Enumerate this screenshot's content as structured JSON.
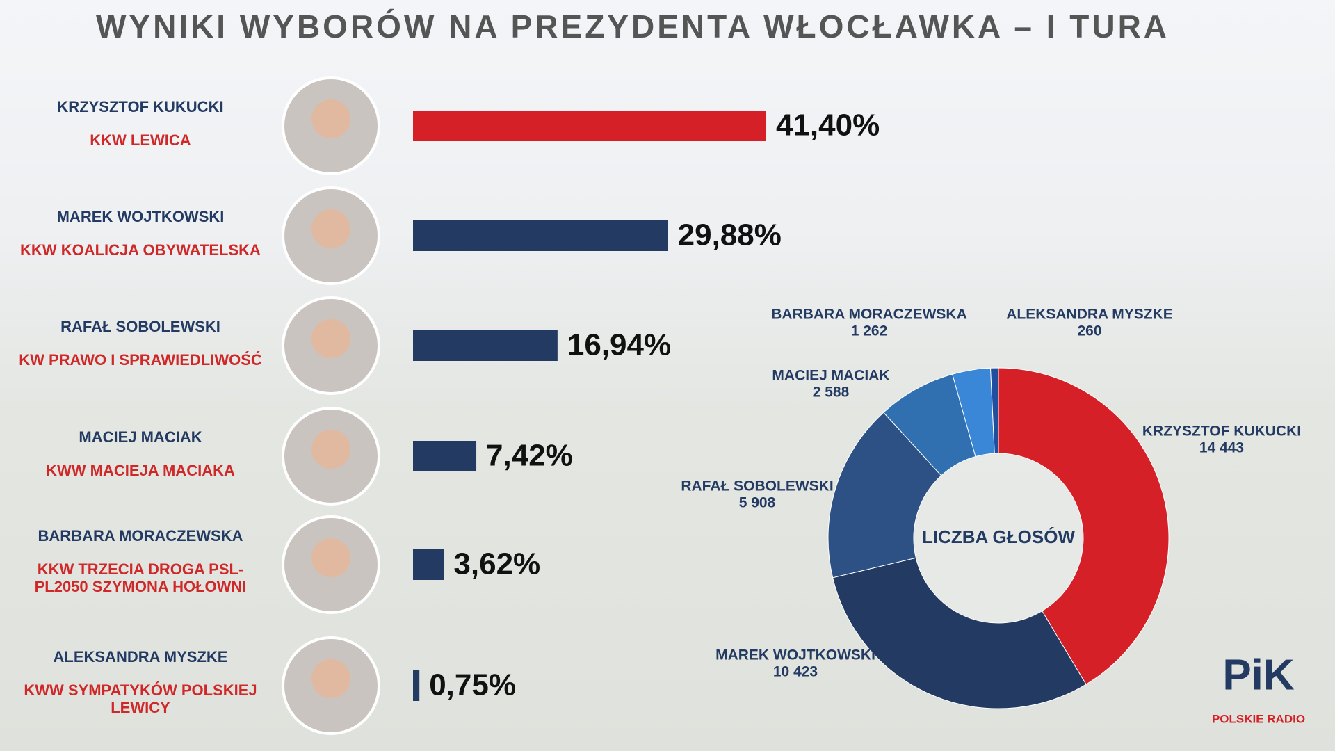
{
  "chart_data": [
    {
      "type": "bar",
      "title": "WYNIKI WYBORÓW NA PREZYDENTA WŁOCŁAWKA – I TURA",
      "categories": [
        "KRZYSZTOF KUKUCKI",
        "MAREK WOJTKOWSKI",
        "RAFAŁ SOBOLEWSKI",
        "MACIEJ MACIAK",
        "BARBARA MORACZEWSKA",
        "ALEKSANDRA MYSZKE"
      ],
      "parties": [
        [
          "KKW LEWICA"
        ],
        [
          "KKW KOALICJA OBYWATELSKA"
        ],
        [
          "KW PRAWO I SPRAWIEDLIWOŚĆ"
        ],
        [
          "KWW MACIEJA MACIAKA"
        ],
        [
          "KKW TRZECIA DROGA PSL-",
          "PL2050 SZYMONA HOŁOWNI"
        ],
        [
          "KWW SYMPATYKÓW POLSKIEJ",
          "LEWICY"
        ]
      ],
      "values": [
        41.4,
        29.88,
        16.94,
        7.42,
        3.62,
        0.75
      ],
      "value_labels": [
        "41,40%",
        "29,88%",
        "16,94%",
        "7,42%",
        "3,62%",
        "0,75%"
      ],
      "colors": [
        "#d42026",
        "#233a62",
        "#233a62",
        "#233a62",
        "#233a62",
        "#233a62"
      ]
    },
    {
      "type": "pie",
      "center_label": "LICZBA GŁOSÓW",
      "categories": [
        "KRZYSZTOF KUKUCKI",
        "MAREK WOJTKOWSKI",
        "RAFAŁ SOBOLEWSKI",
        "MACIEJ MACIAK",
        "BARBARA MORACZEWSKA",
        "ALEKSANDRA MYSZKE"
      ],
      "values": [
        14443,
        10423,
        5908,
        2588,
        1262,
        260
      ],
      "value_labels": [
        "14 443",
        "10 423",
        "5 908",
        "2 588",
        "1 262",
        "260"
      ],
      "colors": [
        "#d42026",
        "#233a62",
        "#2d5184",
        "#306fb0",
        "#3a87d8",
        "#1f4f9e"
      ]
    }
  ],
  "logo": {
    "mark": "PiK",
    "caption": "POLSKIE RADIO"
  }
}
